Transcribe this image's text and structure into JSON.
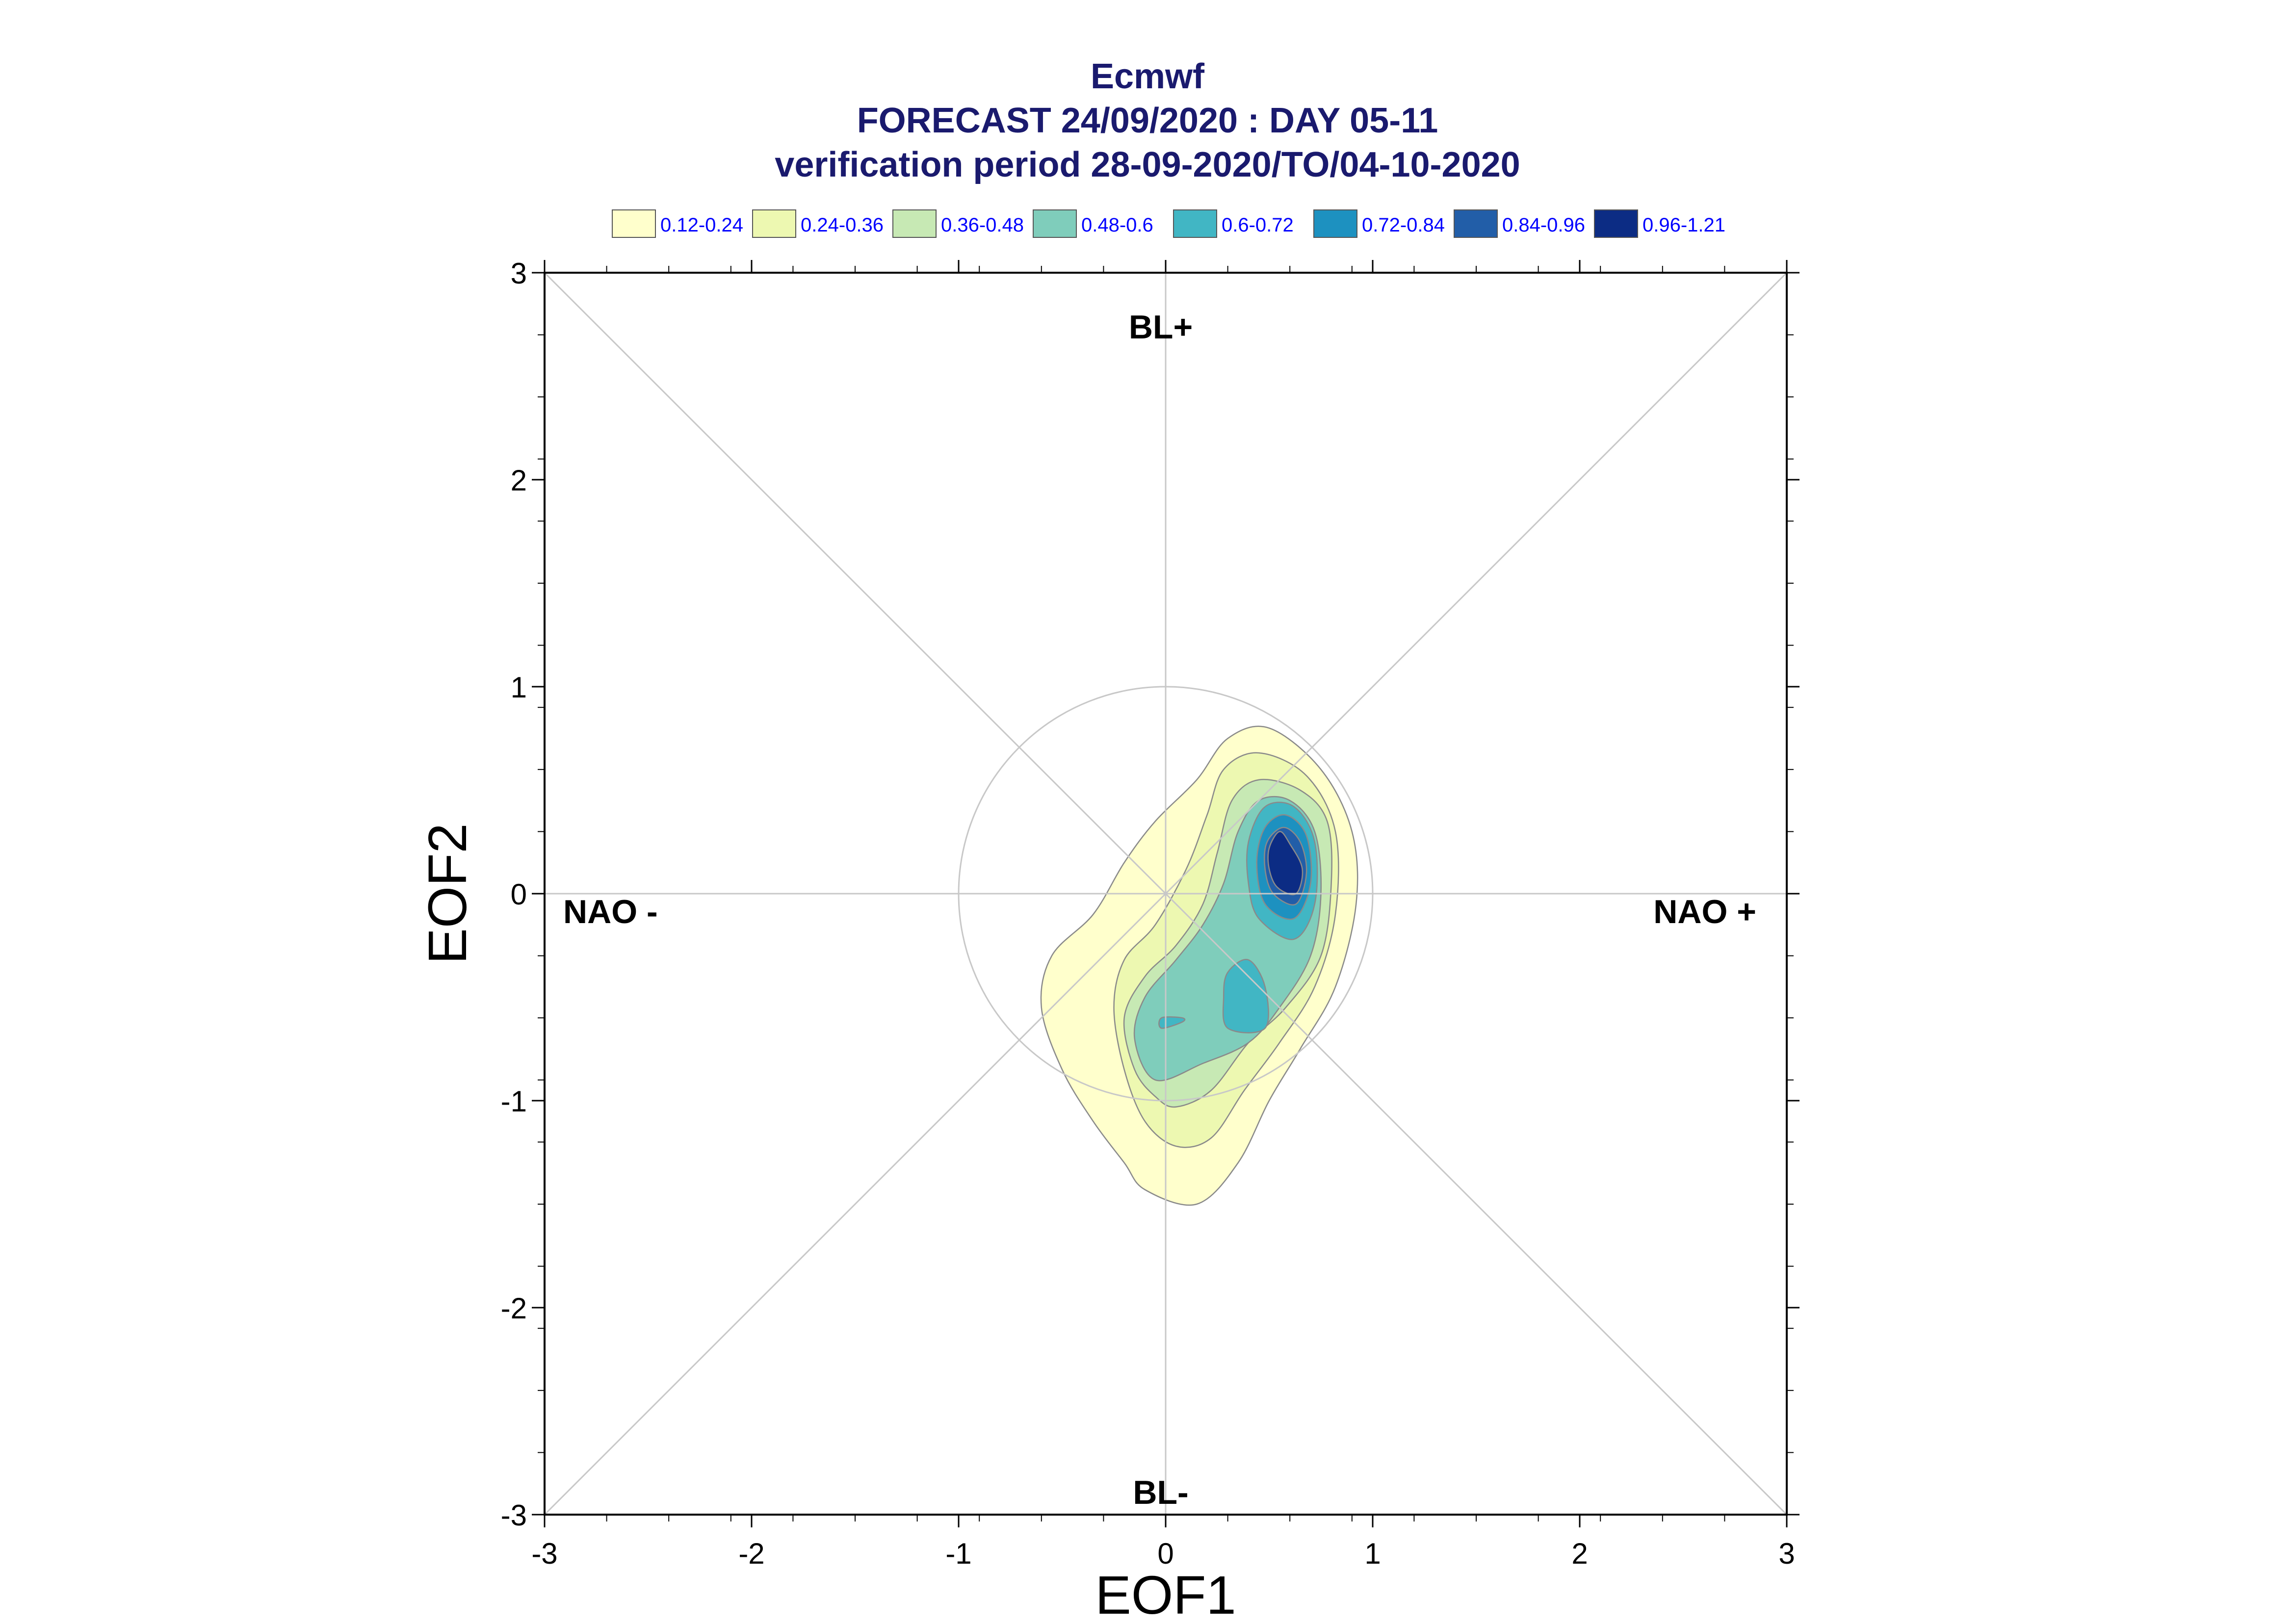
{
  "title": {
    "line1": "Ecmwf",
    "line2": "FORECAST 24/09/2020 : DAY 05-11",
    "line3": "verification period 28-09-2020/TO/04-10-2020"
  },
  "chart_data": {
    "type": "contour",
    "xlabel": "EOF1",
    "ylabel": "EOF2",
    "xlim": [
      -3,
      3
    ],
    "ylim": [
      -3,
      3
    ],
    "x_ticks": [
      "-3",
      "-2",
      "-1",
      "0",
      "1",
      "2",
      "3"
    ],
    "y_ticks": [
      "-3",
      "-2",
      "-1",
      "0",
      "1",
      "2",
      "3"
    ],
    "reference_circle_radius": 1,
    "regime_labels": {
      "top": "BL+",
      "bottom": "BL-",
      "left": "NAO -",
      "right": "NAO +"
    },
    "legend": [
      {
        "label": "0.12-0.24",
        "color": "#ffffcc"
      },
      {
        "label": "0.24-0.36",
        "color": "#edf8b1"
      },
      {
        "label": "0.36-0.48",
        "color": "#c7e9b4"
      },
      {
        "label": "0.48-0.6",
        "color": "#7fcdbb"
      },
      {
        "label": "0.6-0.72",
        "color": "#41b6c4"
      },
      {
        "label": "0.72-0.84",
        "color": "#1d91c0"
      },
      {
        "label": "0.84-0.96",
        "color": "#225ea8"
      },
      {
        "label": "0.96-1.21",
        "color": "#0c2c84"
      }
    ],
    "contours": [
      {
        "level": "0.12-0.24",
        "polygons": [
          [
            [
              -0.1,
              -1.43
            ],
            [
              0.15,
              -1.5
            ],
            [
              0.35,
              -1.3
            ],
            [
              0.5,
              -1.0
            ],
            [
              0.65,
              -0.75
            ],
            [
              0.82,
              -0.45
            ],
            [
              0.92,
              -0.05
            ],
            [
              0.9,
              0.3
            ],
            [
              0.75,
              0.6
            ],
            [
              0.5,
              0.8
            ],
            [
              0.3,
              0.75
            ],
            [
              0.15,
              0.55
            ],
            [
              -0.05,
              0.35
            ],
            [
              -0.2,
              0.15
            ],
            [
              -0.35,
              -0.1
            ],
            [
              -0.55,
              -0.3
            ],
            [
              -0.6,
              -0.55
            ],
            [
              -0.5,
              -0.85
            ],
            [
              -0.35,
              -1.1
            ],
            [
              -0.2,
              -1.3
            ]
          ]
        ]
      },
      {
        "level": "0.24-0.36",
        "polygons": [
          [
            [
              0.05,
              -1.22
            ],
            [
              0.22,
              -1.18
            ],
            [
              0.38,
              -0.95
            ],
            [
              0.55,
              -0.72
            ],
            [
              0.72,
              -0.45
            ],
            [
              0.82,
              -0.1
            ],
            [
              0.82,
              0.3
            ],
            [
              0.68,
              0.57
            ],
            [
              0.45,
              0.68
            ],
            [
              0.28,
              0.6
            ],
            [
              0.2,
              0.38
            ],
            [
              0.1,
              0.12
            ],
            [
              -0.05,
              -0.15
            ],
            [
              -0.2,
              -0.32
            ],
            [
              -0.25,
              -0.55
            ],
            [
              -0.2,
              -0.85
            ],
            [
              -0.1,
              -1.1
            ]
          ]
        ]
      },
      {
        "level": "0.36-0.48",
        "polygons": [
          [
            [
              0.05,
              -1.03
            ],
            [
              0.22,
              -0.95
            ],
            [
              0.4,
              -0.72
            ],
            [
              0.58,
              -0.55
            ],
            [
              0.75,
              -0.3
            ],
            [
              0.8,
              0.05
            ],
            [
              0.78,
              0.35
            ],
            [
              0.65,
              0.5
            ],
            [
              0.45,
              0.55
            ],
            [
              0.32,
              0.45
            ],
            [
              0.25,
              0.2
            ],
            [
              0.18,
              -0.05
            ],
            [
              0.05,
              -0.25
            ],
            [
              -0.1,
              -0.4
            ],
            [
              -0.2,
              -0.6
            ],
            [
              -0.15,
              -0.85
            ],
            [
              -0.05,
              -0.98
            ]
          ]
        ]
      },
      {
        "level": "0.48-0.6",
        "polygons": [
          [
            [
              -0.05,
              -0.9
            ],
            [
              0.18,
              -0.82
            ],
            [
              0.4,
              -0.72
            ],
            [
              0.55,
              -0.55
            ],
            [
              0.7,
              -0.3
            ],
            [
              0.75,
              0.0
            ],
            [
              0.72,
              0.3
            ],
            [
              0.6,
              0.45
            ],
            [
              0.45,
              0.45
            ],
            [
              0.35,
              0.3
            ],
            [
              0.28,
              0.05
            ],
            [
              0.18,
              -0.15
            ],
            [
              0.05,
              -0.32
            ],
            [
              -0.1,
              -0.5
            ],
            [
              -0.15,
              -0.7
            ]
          ]
        ]
      },
      {
        "level": "0.6-0.72",
        "polygons": [
          [
            [
              0.45,
              -0.12
            ],
            [
              0.62,
              -0.22
            ],
            [
              0.72,
              -0.05
            ],
            [
              0.72,
              0.25
            ],
            [
              0.62,
              0.42
            ],
            [
              0.48,
              0.42
            ],
            [
              0.4,
              0.25
            ],
            [
              0.4,
              0.05
            ]
          ],
          [
            [
              0.3,
              -0.65
            ],
            [
              0.48,
              -0.65
            ],
            [
              0.48,
              -0.45
            ],
            [
              0.4,
              -0.32
            ],
            [
              0.3,
              -0.38
            ],
            [
              0.28,
              -0.5
            ]
          ],
          [
            [
              -0.02,
              -0.65
            ],
            [
              0.08,
              -0.62
            ],
            [
              0.08,
              -0.6
            ],
            [
              -0.02,
              -0.6
            ]
          ]
        ]
      },
      {
        "level": "0.72-0.84",
        "polygons": [
          [
            [
              0.48,
              -0.05
            ],
            [
              0.62,
              -0.12
            ],
            [
              0.7,
              0.05
            ],
            [
              0.68,
              0.28
            ],
            [
              0.58,
              0.38
            ],
            [
              0.48,
              0.32
            ],
            [
              0.44,
              0.15
            ]
          ]
        ]
      },
      {
        "level": "0.84-0.96",
        "polygons": [
          [
            [
              0.52,
              0.0
            ],
            [
              0.63,
              -0.05
            ],
            [
              0.68,
              0.1
            ],
            [
              0.65,
              0.25
            ],
            [
              0.57,
              0.32
            ],
            [
              0.49,
              0.25
            ],
            [
              0.48,
              0.12
            ]
          ]
        ]
      },
      {
        "level": "0.96-1.21",
        "polygons": [
          [
            [
              0.54,
              0.03
            ],
            [
              0.63,
              0.0
            ],
            [
              0.66,
              0.12
            ],
            [
              0.6,
              0.24
            ],
            [
              0.55,
              0.3
            ],
            [
              0.5,
              0.22
            ],
            [
              0.5,
              0.12
            ]
          ]
        ]
      }
    ]
  }
}
